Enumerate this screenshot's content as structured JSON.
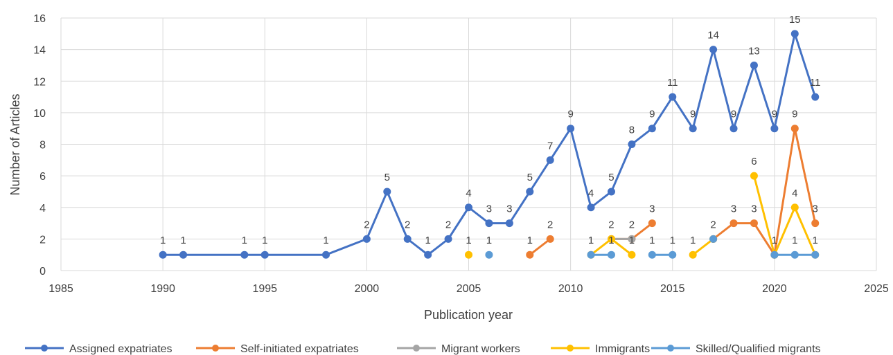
{
  "chart_data": {
    "type": "line",
    "title": "",
    "xlabel": "Publication year",
    "ylabel": "Number of Articles",
    "xlim": [
      1985,
      2025
    ],
    "ylim": [
      0,
      16
    ],
    "x_ticks": [
      "1985",
      "1990",
      "1995",
      "2000",
      "2005",
      "2010",
      "2015",
      "2020",
      "2025"
    ],
    "y_ticks": [
      "0",
      "2",
      "4",
      "6",
      "8",
      "10",
      "12",
      "14",
      "16"
    ],
    "grid": true,
    "legend_position": "bottom",
    "series": [
      {
        "name": "Assigned expatriates",
        "color": "#4472C4",
        "points": [
          [
            1990,
            1
          ],
          [
            1991,
            1
          ],
          [
            1994,
            1
          ],
          [
            1995,
            1
          ],
          [
            1998,
            1
          ],
          [
            2000,
            2
          ],
          [
            2001,
            5
          ],
          [
            2002,
            2
          ],
          [
            2003,
            1
          ],
          [
            2004,
            2
          ],
          [
            2005,
            4
          ],
          [
            2006,
            3
          ],
          [
            2007,
            3
          ],
          [
            2008,
            5
          ],
          [
            2009,
            7
          ],
          [
            2010,
            9
          ],
          [
            2011,
            4
          ],
          [
            2012,
            5
          ],
          [
            2013,
            8
          ],
          [
            2014,
            9
          ],
          [
            2015,
            11
          ],
          [
            2016,
            9
          ],
          [
            2017,
            14
          ],
          [
            2018,
            9
          ],
          [
            2019,
            13
          ],
          [
            2020,
            9
          ],
          [
            2021,
            15
          ],
          [
            2022,
            11
          ]
        ],
        "segments": [
          [
            1990,
            2022
          ]
        ]
      },
      {
        "name": "Self-initiated expatriates",
        "color": "#ED7D31",
        "points": [
          [
            2008,
            1
          ],
          [
            2009,
            2
          ],
          [
            2012,
            2
          ],
          [
            2013,
            2
          ],
          [
            2014,
            3
          ],
          [
            2017,
            2
          ],
          [
            2018,
            3
          ],
          [
            2019,
            3
          ],
          [
            2020,
            1
          ],
          [
            2021,
            9
          ],
          [
            2022,
            3
          ]
        ],
        "segments": [
          [
            2008,
            2009
          ],
          [
            2012,
            2014
          ],
          [
            2017,
            2022
          ]
        ]
      },
      {
        "name": "Migrant workers",
        "color": "#A5A5A5",
        "points": [
          [
            2012,
            2
          ],
          [
            2013,
            2
          ],
          [
            2017,
            2
          ],
          [
            2020,
            1
          ]
        ],
        "segments": [
          [
            2012,
            2013
          ]
        ]
      },
      {
        "name": "Immigrants",
        "color": "#FFC000",
        "points": [
          [
            2005,
            1
          ],
          [
            2011,
            1
          ],
          [
            2012,
            2
          ],
          [
            2013,
            1
          ],
          [
            2016,
            1
          ],
          [
            2017,
            2
          ],
          [
            2019,
            6
          ],
          [
            2020,
            1
          ],
          [
            2021,
            4
          ],
          [
            2022,
            1
          ]
        ],
        "segments": [
          [
            2011,
            2013
          ],
          [
            2016,
            2017
          ],
          [
            2019,
            2022
          ]
        ]
      },
      {
        "name": "Skilled/Qualified migrants",
        "color": "#5B9BD5",
        "points": [
          [
            2006,
            1
          ],
          [
            2011,
            1
          ],
          [
            2012,
            1
          ],
          [
            2014,
            1
          ],
          [
            2015,
            1
          ],
          [
            2017,
            2
          ],
          [
            2020,
            1
          ],
          [
            2021,
            1
          ],
          [
            2022,
            1
          ]
        ],
        "segments": [
          [
            2011,
            2012
          ],
          [
            2014,
            2015
          ],
          [
            2020,
            2022
          ]
        ]
      }
    ],
    "data_labels": [
      {
        "x": 1990,
        "y": 1,
        "text": "1"
      },
      {
        "x": 1991,
        "y": 1,
        "text": "1"
      },
      {
        "x": 1994,
        "y": 1,
        "text": "1"
      },
      {
        "x": 1995,
        "y": 1,
        "text": "1"
      },
      {
        "x": 1998,
        "y": 1,
        "text": "1"
      },
      {
        "x": 2000,
        "y": 2,
        "text": "2"
      },
      {
        "x": 2001,
        "y": 5,
        "text": "5"
      },
      {
        "x": 2002,
        "y": 2,
        "text": "2"
      },
      {
        "x": 2003,
        "y": 1,
        "text": "1"
      },
      {
        "x": 2004,
        "y": 2,
        "text": "2"
      },
      {
        "x": 2005,
        "y": 4,
        "text": "4"
      },
      {
        "x": 2006,
        "y": 3,
        "text": "3"
      },
      {
        "x": 2007,
        "y": 3,
        "text": "3"
      },
      {
        "x": 2008,
        "y": 5,
        "text": "5"
      },
      {
        "x": 2009,
        "y": 7,
        "text": "7"
      },
      {
        "x": 2010,
        "y": 9,
        "text": "9"
      },
      {
        "x": 2011,
        "y": 4,
        "text": "4"
      },
      {
        "x": 2012,
        "y": 5,
        "text": "5"
      },
      {
        "x": 2013,
        "y": 8,
        "text": "8"
      },
      {
        "x": 2014,
        "y": 9,
        "text": "9"
      },
      {
        "x": 2015,
        "y": 11,
        "text": "11"
      },
      {
        "x": 2016,
        "y": 9,
        "text": "9"
      },
      {
        "x": 2017,
        "y": 14,
        "text": "14"
      },
      {
        "x": 2018,
        "y": 9,
        "text": "9"
      },
      {
        "x": 2019,
        "y": 13,
        "text": "13"
      },
      {
        "x": 2020,
        "y": 9,
        "text": "9"
      },
      {
        "x": 2021,
        "y": 15,
        "text": "15"
      },
      {
        "x": 2022,
        "y": 11,
        "text": "11"
      },
      {
        "x": 2005,
        "y": 1,
        "text": "1"
      },
      {
        "x": 2006,
        "y": 1,
        "text": "1"
      },
      {
        "x": 2008,
        "y": 1,
        "text": "1"
      },
      {
        "x": 2009,
        "y": 2,
        "text": "2"
      },
      {
        "x": 2011,
        "y": 1,
        "text": "1"
      },
      {
        "x": 2012,
        "y": 1,
        "text": "1"
      },
      {
        "x": 2012,
        "y": 2,
        "text": "2"
      },
      {
        "x": 2013,
        "y": 1,
        "text": "1"
      },
      {
        "x": 2013,
        "y": 2,
        "text": "2"
      },
      {
        "x": 2014,
        "y": 1,
        "text": "1"
      },
      {
        "x": 2014,
        "y": 3,
        "text": "3"
      },
      {
        "x": 2015,
        "y": 1,
        "text": "1"
      },
      {
        "x": 2016,
        "y": 1,
        "text": "1"
      },
      {
        "x": 2017,
        "y": 2,
        "text": "2"
      },
      {
        "x": 2018,
        "y": 3,
        "text": "3"
      },
      {
        "x": 2019,
        "y": 3,
        "text": "3"
      },
      {
        "x": 2019,
        "y": 6,
        "text": "6"
      },
      {
        "x": 2020,
        "y": 1,
        "text": "1"
      },
      {
        "x": 2021,
        "y": 9,
        "text": "9"
      },
      {
        "x": 2021,
        "y": 4,
        "text": "4"
      },
      {
        "x": 2021,
        "y": 1,
        "text": "1"
      },
      {
        "x": 2022,
        "y": 3,
        "text": "3"
      },
      {
        "x": 2022,
        "y": 1,
        "text": "1"
      }
    ]
  }
}
